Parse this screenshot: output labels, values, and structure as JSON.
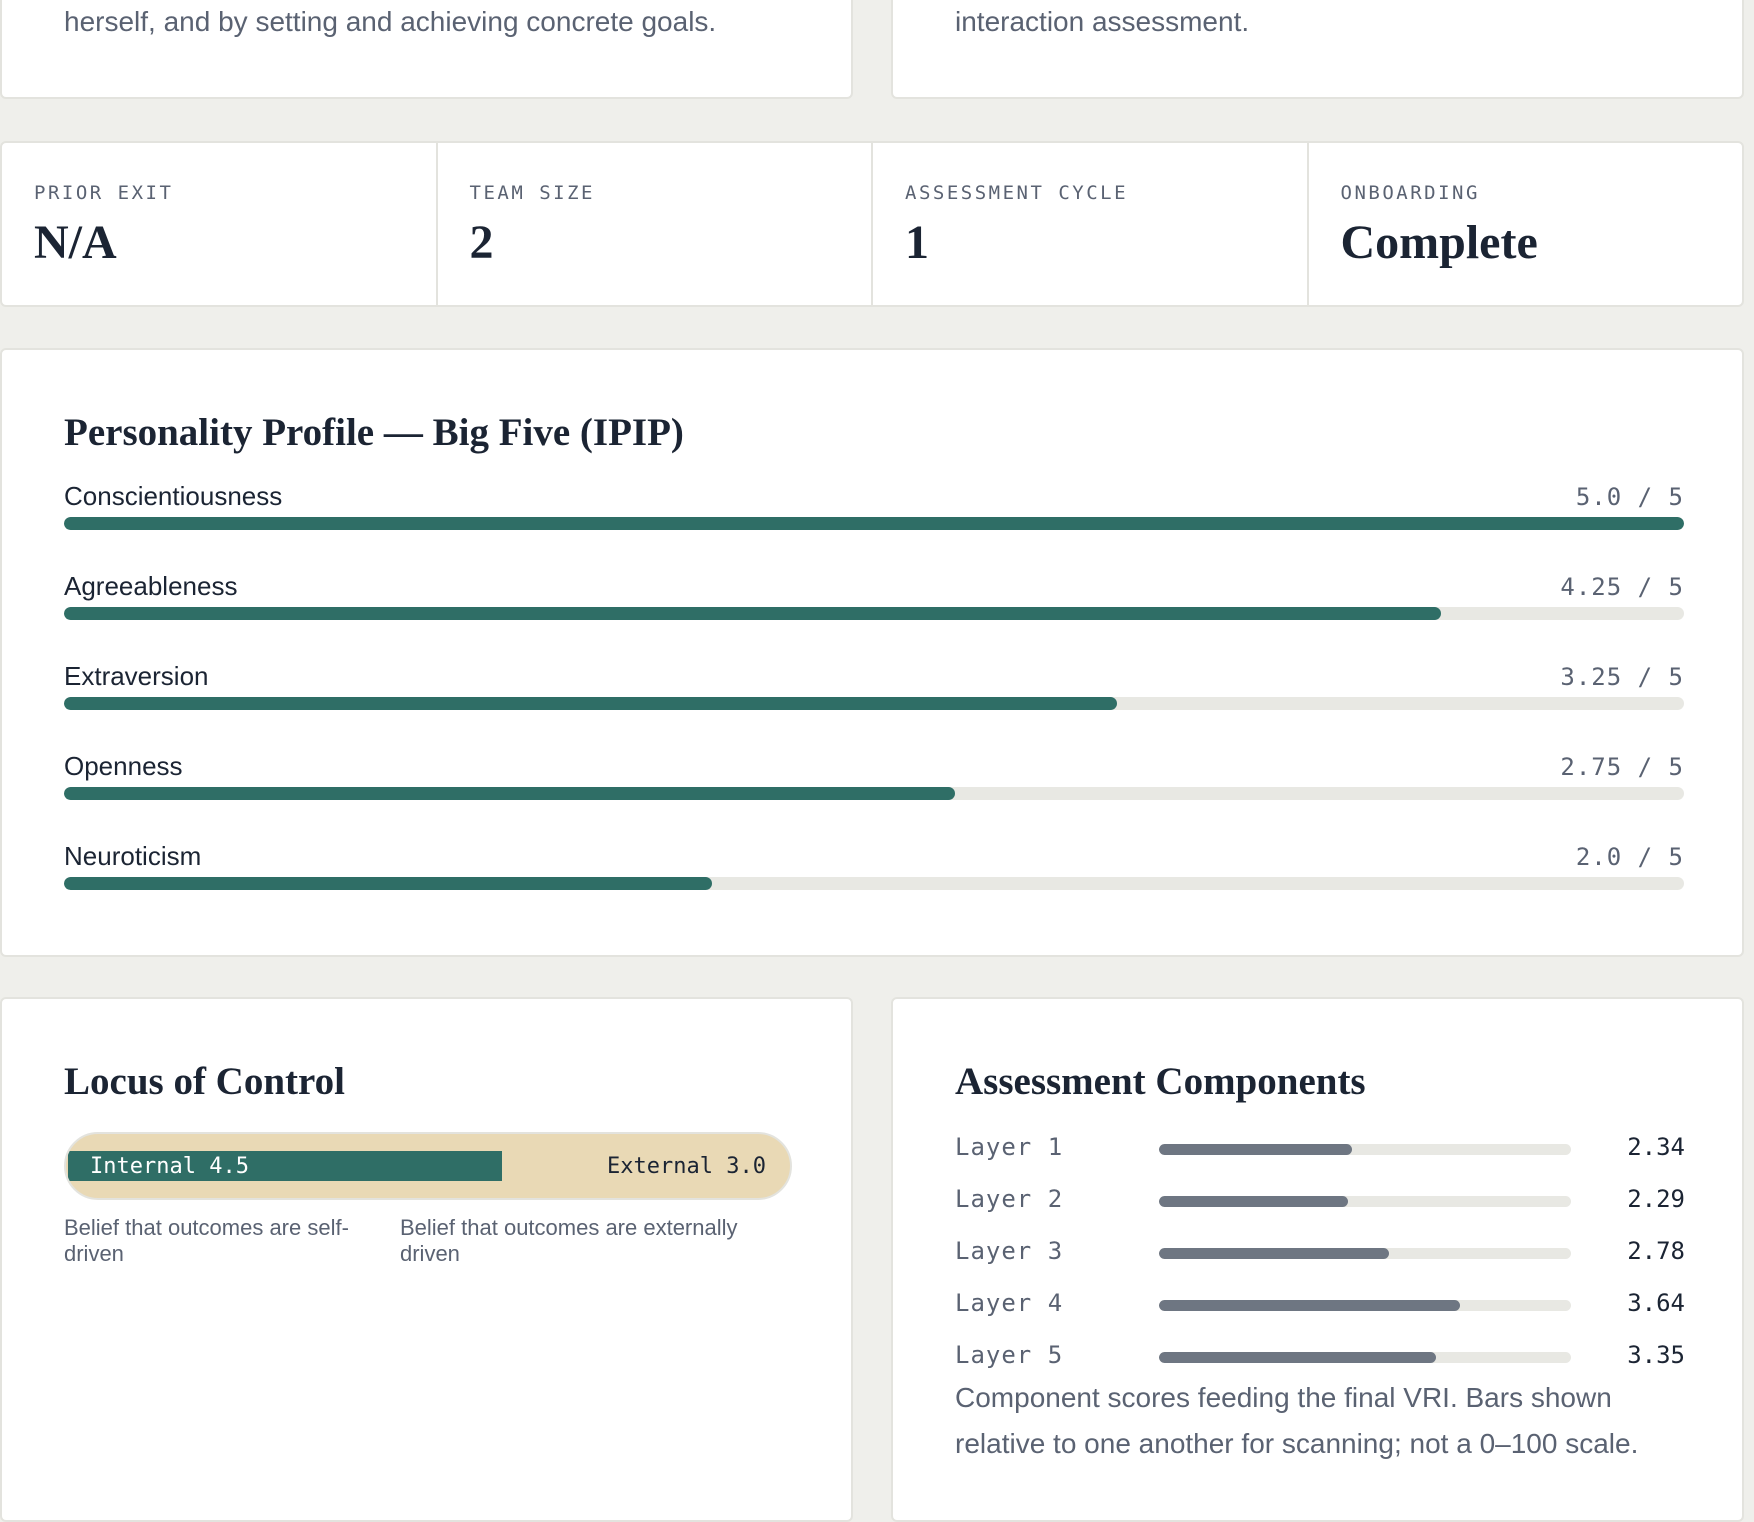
{
  "top_cards": {
    "left_text": "herself, and by setting and achieving concrete goals.",
    "right_text": "interaction assessment."
  },
  "stats": [
    {
      "label": "PRIOR EXIT",
      "value": "N/A"
    },
    {
      "label": "TEAM SIZE",
      "value": "2"
    },
    {
      "label": "ASSESSMENT CYCLE",
      "value": "1"
    },
    {
      "label": "ONBOARDING",
      "value": "Complete"
    }
  ],
  "personality": {
    "title": "Personality Profile — Big Five (IPIP)",
    "traits": [
      {
        "name": "Conscientiousness",
        "score": "5.0 / 5",
        "value": 5.0
      },
      {
        "name": "Agreeableness",
        "score": "4.25 / 5",
        "value": 4.25
      },
      {
        "name": "Extraversion",
        "score": "3.25 / 5",
        "value": 3.25
      },
      {
        "name": "Openness",
        "score": "2.75 / 5",
        "value": 2.75
      },
      {
        "name": "Neuroticism",
        "score": "2.0 / 5",
        "value": 2.0
      }
    ],
    "max": 5,
    "fill_color": "#2f6e66"
  },
  "locus": {
    "title": "Locus of Control",
    "internal_label": "Internal 4.5",
    "external_label": "External 3.0",
    "internal_value": 4.5,
    "external_value": 3.0,
    "internal_desc": "Belief that outcomes are self-driven",
    "external_desc": "Belief that outcomes are externally driven",
    "internal_color": "#2f6e66",
    "external_color": "#e9d9b5"
  },
  "components": {
    "title": "Assessment Components",
    "layers": [
      {
        "name": "Layer 1",
        "value": "2.34"
      },
      {
        "name": "Layer 2",
        "value": "2.29"
      },
      {
        "name": "Layer 3",
        "value": "2.78"
      },
      {
        "name": "Layer 4",
        "value": "3.64"
      },
      {
        "name": "Layer 5",
        "value": "3.35"
      }
    ],
    "note": "Component scores feeding the final VRI. Bars shown relative to one another for scanning; not a 0–100 scale.",
    "bar_color": "#6e7682"
  }
}
